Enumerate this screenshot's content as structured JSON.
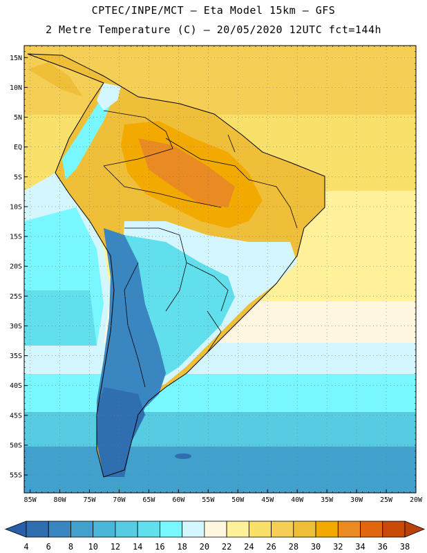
{
  "header": {
    "line1": "CPTEC/INPE/MCT –  Eta Model 15km – GFS",
    "line2": "2 Metre Temperature (C) – 20/05/2020 12UTC fct=144h"
  },
  "map": {
    "lon_range": [
      -86,
      -20
    ],
    "lat_range": [
      -58,
      17
    ],
    "lat_ticks": [
      {
        "v": 15,
        "label": "15N"
      },
      {
        "v": 10,
        "label": "10N"
      },
      {
        "v": 5,
        "label": "5N"
      },
      {
        "v": 0,
        "label": "EQ"
      },
      {
        "v": -5,
        "label": "5S"
      },
      {
        "v": -10,
        "label": "10S"
      },
      {
        "v": -15,
        "label": "15S"
      },
      {
        "v": -20,
        "label": "20S"
      },
      {
        "v": -25,
        "label": "25S"
      },
      {
        "v": -30,
        "label": "30S"
      },
      {
        "v": -35,
        "label": "35S"
      },
      {
        "v": -40,
        "label": "40S"
      },
      {
        "v": -45,
        "label": "45S"
      },
      {
        "v": -50,
        "label": "50S"
      },
      {
        "v": -55,
        "label": "55S"
      }
    ],
    "lon_ticks": [
      {
        "v": -85,
        "label": "85W"
      },
      {
        "v": -80,
        "label": "80W"
      },
      {
        "v": -75,
        "label": "75W"
      },
      {
        "v": -70,
        "label": "70W"
      },
      {
        "v": -65,
        "label": "65W"
      },
      {
        "v": -60,
        "label": "60W"
      },
      {
        "v": -55,
        "label": "55W"
      },
      {
        "v": -50,
        "label": "50W"
      },
      {
        "v": -45,
        "label": "45W"
      },
      {
        "v": -40,
        "label": "40W"
      },
      {
        "v": -35,
        "label": "35W"
      },
      {
        "v": -30,
        "label": "30W"
      },
      {
        "v": -25,
        "label": "25W"
      },
      {
        "v": -20,
        "label": "20W"
      }
    ]
  },
  "colorbar": {
    "labels": [
      "4",
      "6",
      "8",
      "10",
      "12",
      "14",
      "16",
      "18",
      "20",
      "22",
      "24",
      "26",
      "28",
      "30",
      "32",
      "34",
      "36",
      "38"
    ],
    "colors": [
      "#2f6fb0",
      "#3a86c0",
      "#42a0cc",
      "#4bb6d8",
      "#56cbe2",
      "#61dfec",
      "#78f7ff",
      "#d4f6ff",
      "#fff7e0",
      "#fff29a",
      "#f9e06a",
      "#f5cf55",
      "#f0bf3a",
      "#f2aa00",
      "#ea8a22",
      "#e0660f",
      "#c84a06"
    ],
    "low_color": "#2a5fa8",
    "high_color": "#b8420a"
  }
}
